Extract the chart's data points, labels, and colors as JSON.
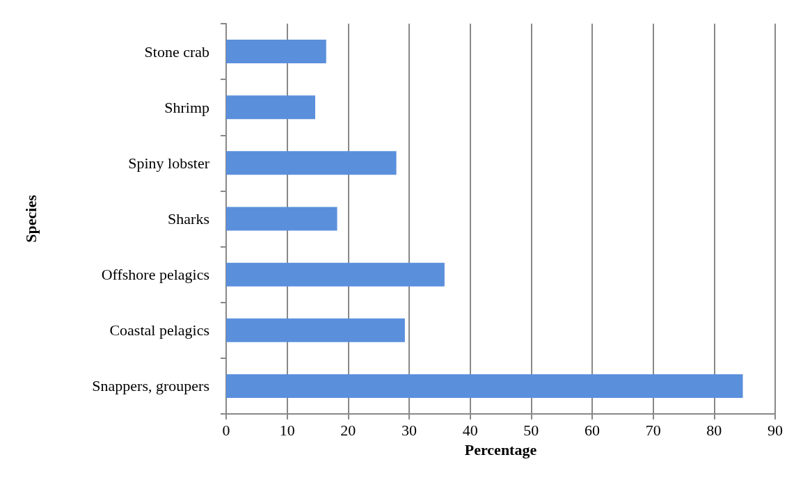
{
  "chart_data": {
    "type": "bar",
    "orientation": "horizontal",
    "xlabel": "Percentage",
    "ylabel": "Species",
    "categories": [
      "Stone crab",
      "Shrimp",
      "Spiny lobster",
      "Sharks",
      "Offshore pelagics",
      "Coastal pelagics",
      "Snappers, groupers"
    ],
    "values": [
      16.4,
      14.6,
      27.9,
      18.2,
      35.8,
      29.3,
      84.7
    ],
    "color": "#5a8fdc",
    "xlim": [
      0,
      90
    ],
    "xticks": [
      0,
      10,
      20,
      30,
      40,
      50,
      60,
      70,
      80,
      90
    ],
    "grid": "x"
  }
}
